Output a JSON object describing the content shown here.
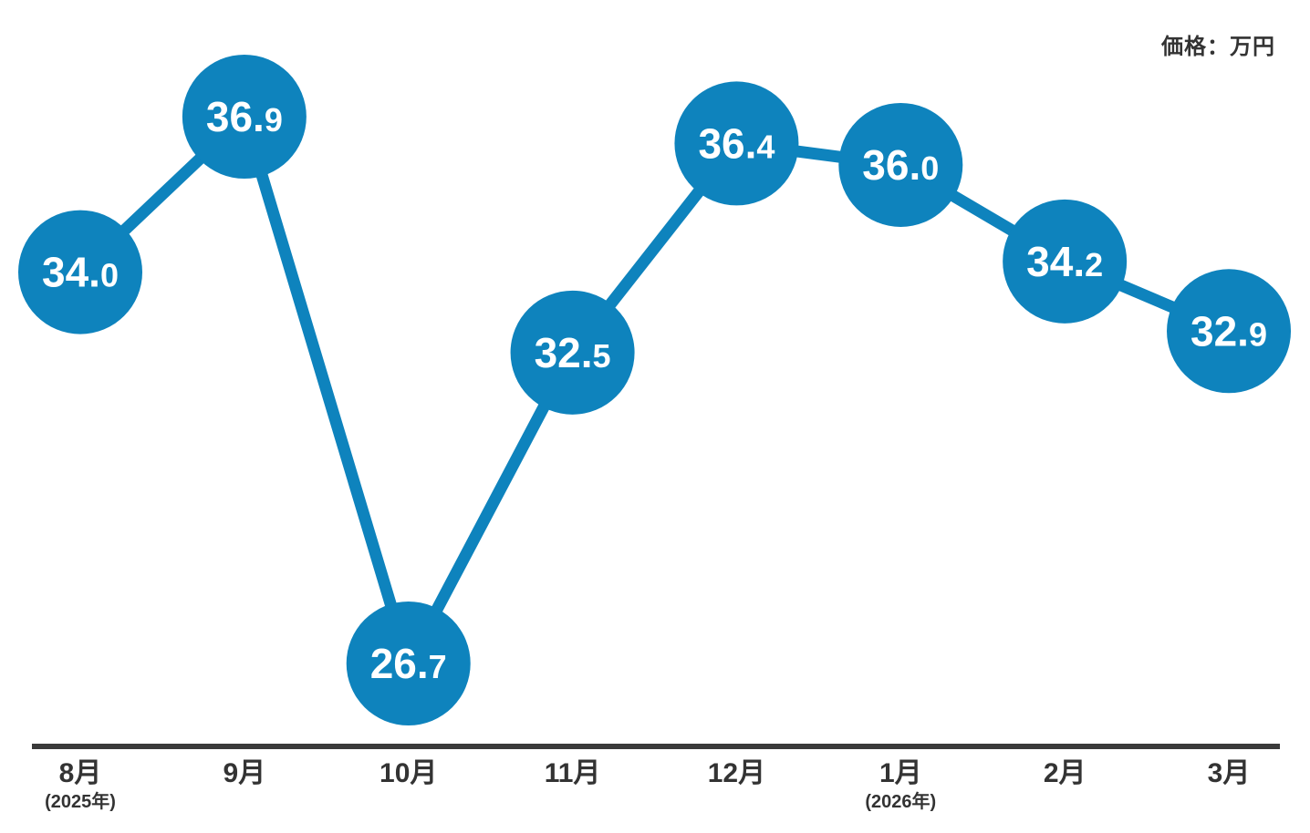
{
  "header": {
    "unit_label": "価格：万円"
  },
  "chart_data": {
    "type": "line",
    "title": "価格：万円",
    "categories": [
      "8月",
      "9月",
      "10月",
      "11月",
      "12月",
      "1月",
      "2月",
      "3月"
    ],
    "category_sublabels": [
      "(2025年)",
      "",
      "",
      "",
      "",
      "(2026年)",
      "",
      ""
    ],
    "values": [
      34.0,
      36.9,
      26.7,
      32.5,
      36.4,
      36.0,
      34.2,
      32.9
    ],
    "value_labels": [
      "34.0",
      "36.9",
      "26.7",
      "32.5",
      "36.4",
      "36.0",
      "34.2",
      "32.9"
    ],
    "ylim": [
      26.7,
      36.9
    ],
    "legend": "none",
    "grid": false,
    "colors": {
      "series": "#0e83bd",
      "value_text": "#ffffff",
      "axis": "#3a3a3a",
      "tick_label": "#333333"
    }
  }
}
